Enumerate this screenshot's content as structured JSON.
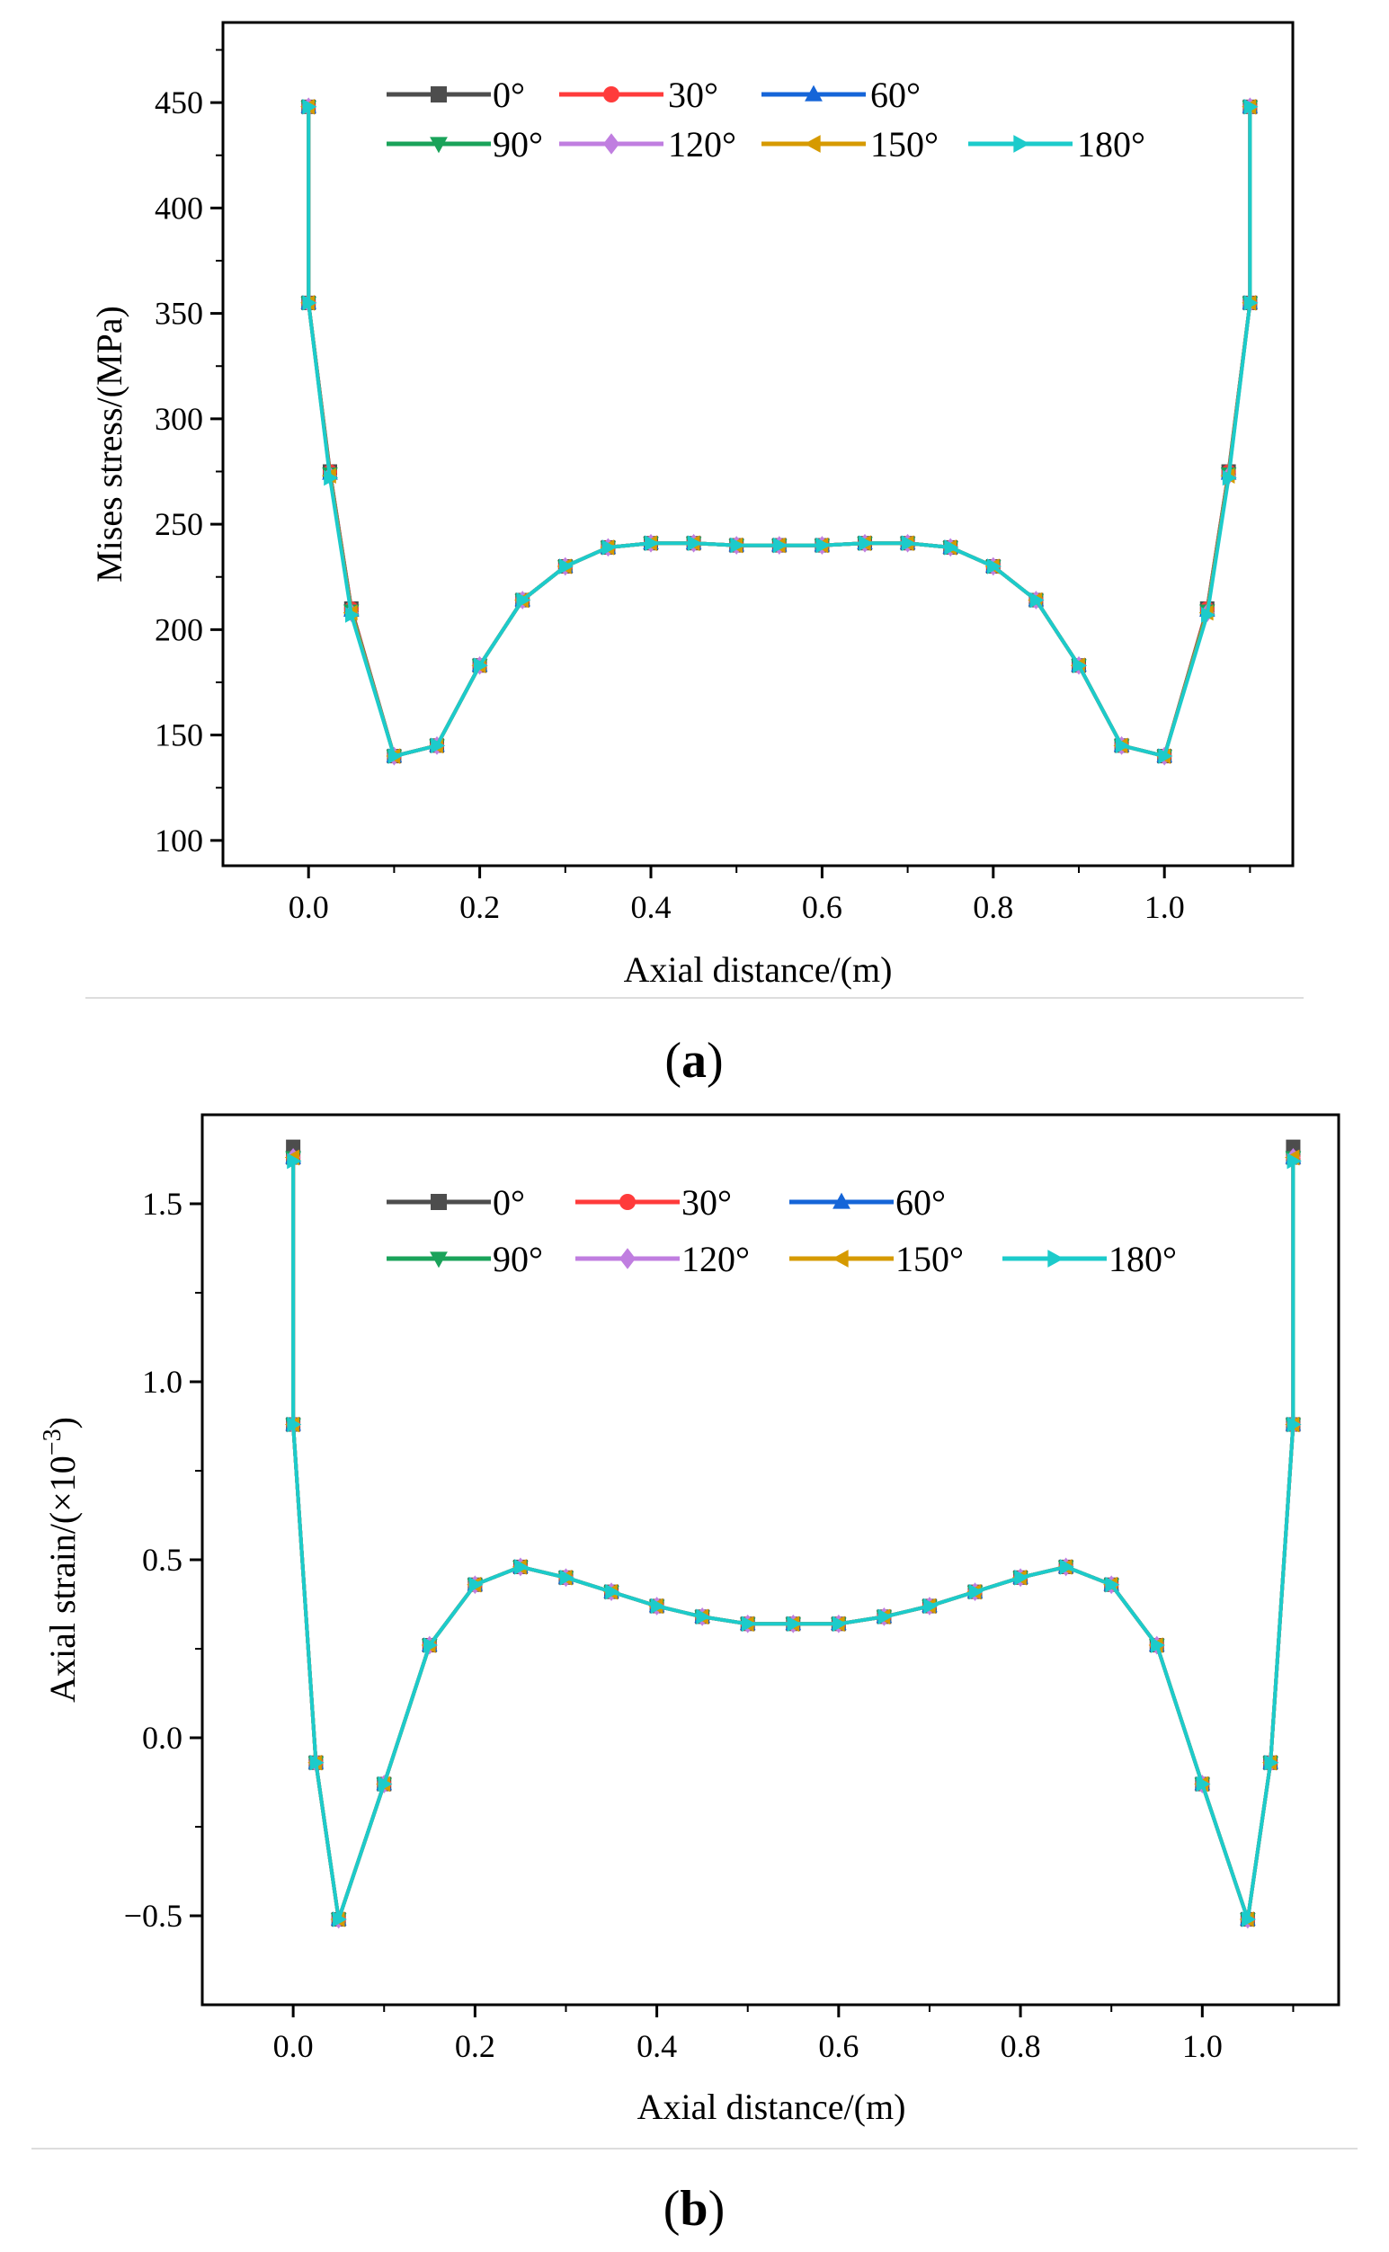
{
  "chart_data": [
    {
      "type": "line",
      "panel_label": "a",
      "xlabel": "Axial distance/(m)",
      "ylabel": "Mises stress/(MPa)",
      "xlim": [
        -0.1,
        1.15
      ],
      "ylim": [
        88,
        488
      ],
      "xticks": [
        0.0,
        0.2,
        0.4,
        0.6,
        0.8,
        1.0
      ],
      "yticks": [
        100,
        150,
        200,
        250,
        300,
        350,
        400,
        450
      ],
      "xtick_labels": [
        "0.0",
        "0.2",
        "0.4",
        "0.6",
        "0.8",
        "1.0"
      ],
      "ytick_labels": [
        "100",
        "150",
        "200",
        "250",
        "300",
        "350",
        "400",
        "450"
      ],
      "x": [
        0.0,
        0.0,
        0.025,
        0.05,
        0.1,
        0.15,
        0.2,
        0.25,
        0.3,
        0.35,
        0.4,
        0.45,
        0.5,
        0.55,
        0.6,
        0.65,
        0.7,
        0.75,
        0.8,
        0.85,
        0.9,
        0.95,
        1.0,
        1.05,
        1.075,
        1.1,
        1.1
      ],
      "series": [
        {
          "name": "0°",
          "values": [
            448,
            355,
            275,
            210,
            140,
            145,
            183,
            214,
            230,
            239,
            241,
            241,
            240,
            240,
            240,
            241,
            241,
            239,
            230,
            214,
            183,
            145,
            140,
            210,
            275,
            355,
            448
          ]
        },
        {
          "name": "30°",
          "values": [
            448,
            355,
            275,
            210,
            140,
            145,
            183,
            214,
            230,
            239,
            241,
            241,
            240,
            240,
            240,
            241,
            241,
            239,
            230,
            214,
            183,
            145,
            140,
            210,
            275,
            355,
            448
          ]
        },
        {
          "name": "60°",
          "values": [
            448,
            355,
            274,
            209,
            140,
            145,
            183,
            214,
            230,
            239,
            241,
            241,
            240,
            240,
            240,
            241,
            241,
            239,
            230,
            214,
            183,
            145,
            140,
            209,
            274,
            355,
            448
          ]
        },
        {
          "name": "90°",
          "values": [
            448,
            355,
            274,
            209,
            140,
            145,
            183,
            214,
            230,
            239,
            241,
            241,
            240,
            240,
            240,
            241,
            241,
            239,
            230,
            214,
            183,
            145,
            140,
            209,
            274,
            355,
            448
          ]
        },
        {
          "name": "120°",
          "values": [
            448,
            355,
            273,
            208,
            140,
            145,
            183,
            214,
            230,
            239,
            241,
            241,
            240,
            240,
            240,
            241,
            241,
            239,
            230,
            214,
            183,
            145,
            140,
            208,
            273,
            355,
            448
          ]
        },
        {
          "name": "150°",
          "values": [
            448,
            355,
            273,
            208,
            140,
            145,
            183,
            214,
            230,
            239,
            241,
            241,
            240,
            240,
            240,
            241,
            241,
            239,
            230,
            214,
            183,
            145,
            140,
            208,
            273,
            355,
            448
          ]
        },
        {
          "name": "180°",
          "values": [
            448,
            355,
            272,
            207,
            140,
            145,
            183,
            214,
            230,
            239,
            241,
            241,
            240,
            240,
            240,
            241,
            241,
            239,
            230,
            214,
            183,
            145,
            140,
            207,
            272,
            355,
            448
          ]
        }
      ]
    },
    {
      "type": "line",
      "panel_label": "b",
      "xlabel": "Axial distance/(m)",
      "ylabel_text": "Axial strain/(×10",
      "ylabel_sup": "−3",
      "ylabel_close": ")",
      "xlim": [
        -0.1,
        1.15
      ],
      "ylim": [
        -0.75,
        1.75
      ],
      "xticks": [
        0.0,
        0.2,
        0.4,
        0.6,
        0.8,
        1.0
      ],
      "yticks": [
        -0.5,
        0.0,
        0.5,
        1.0,
        1.5
      ],
      "xtick_labels": [
        "0.0",
        "0.2",
        "0.4",
        "0.6",
        "0.8",
        "1.0"
      ],
      "ytick_labels": [
        "−0.5",
        "0.0",
        "0.5",
        "1.0",
        "1.5"
      ],
      "x": [
        0.0,
        0.0,
        0.0,
        0.025,
        0.05,
        0.1,
        0.15,
        0.2,
        0.25,
        0.3,
        0.35,
        0.4,
        0.45,
        0.5,
        0.55,
        0.6,
        0.65,
        0.7,
        0.75,
        0.8,
        0.85,
        0.9,
        0.95,
        1.0,
        1.05,
        1.075,
        1.1,
        1.1,
        1.1
      ],
      "series": [
        {
          "name": "0°",
          "values": [
            1.66,
            1.63,
            0.88,
            -0.07,
            -0.51,
            -0.13,
            0.26,
            0.43,
            0.48,
            0.45,
            0.41,
            0.37,
            0.34,
            0.32,
            0.32,
            0.32,
            0.34,
            0.37,
            0.41,
            0.45,
            0.48,
            0.43,
            0.26,
            -0.13,
            -0.51,
            -0.07,
            0.88,
            1.63,
            1.66
          ]
        },
        {
          "name": "30°",
          "values": [
            1.63,
            1.63,
            0.88,
            -0.07,
            -0.51,
            -0.13,
            0.26,
            0.43,
            0.48,
            0.45,
            0.41,
            0.37,
            0.34,
            0.32,
            0.32,
            0.32,
            0.34,
            0.37,
            0.41,
            0.45,
            0.48,
            0.43,
            0.26,
            -0.13,
            -0.51,
            -0.07,
            0.88,
            1.63,
            1.63
          ]
        },
        {
          "name": "60°",
          "values": [
            1.63,
            1.63,
            0.88,
            -0.07,
            -0.51,
            -0.13,
            0.26,
            0.43,
            0.48,
            0.45,
            0.41,
            0.37,
            0.34,
            0.32,
            0.32,
            0.32,
            0.34,
            0.37,
            0.41,
            0.45,
            0.48,
            0.43,
            0.26,
            -0.13,
            -0.51,
            -0.07,
            0.88,
            1.63,
            1.63
          ]
        },
        {
          "name": "90°",
          "values": [
            1.63,
            1.63,
            0.88,
            -0.07,
            -0.51,
            -0.13,
            0.26,
            0.43,
            0.48,
            0.45,
            0.41,
            0.37,
            0.34,
            0.32,
            0.32,
            0.32,
            0.34,
            0.37,
            0.41,
            0.45,
            0.48,
            0.43,
            0.26,
            -0.13,
            -0.51,
            -0.07,
            0.88,
            1.63,
            1.63
          ]
        },
        {
          "name": "120°",
          "values": [
            1.63,
            1.63,
            0.88,
            -0.07,
            -0.51,
            -0.13,
            0.26,
            0.43,
            0.48,
            0.45,
            0.41,
            0.37,
            0.34,
            0.32,
            0.32,
            0.32,
            0.34,
            0.37,
            0.41,
            0.45,
            0.48,
            0.43,
            0.26,
            -0.13,
            -0.51,
            -0.07,
            0.88,
            1.63,
            1.63
          ]
        },
        {
          "name": "150°",
          "values": [
            1.63,
            1.63,
            0.88,
            -0.07,
            -0.51,
            -0.13,
            0.26,
            0.43,
            0.48,
            0.45,
            0.41,
            0.37,
            0.34,
            0.32,
            0.32,
            0.32,
            0.34,
            0.37,
            0.41,
            0.45,
            0.48,
            0.43,
            0.26,
            -0.13,
            -0.51,
            -0.07,
            0.88,
            1.63,
            1.63
          ]
        },
        {
          "name": "180°",
          "values": [
            1.62,
            1.62,
            0.88,
            -0.07,
            -0.51,
            -0.13,
            0.26,
            0.43,
            0.48,
            0.45,
            0.41,
            0.37,
            0.34,
            0.32,
            0.32,
            0.32,
            0.34,
            0.37,
            0.41,
            0.45,
            0.48,
            0.43,
            0.26,
            -0.13,
            -0.51,
            -0.07,
            0.88,
            1.62,
            1.62
          ]
        }
      ]
    }
  ],
  "legend_series": [
    {
      "name": "0°",
      "color": "#4d4d4d",
      "marker": "square"
    },
    {
      "name": "30°",
      "color": "#ff3b3b",
      "marker": "circle"
    },
    {
      "name": "60°",
      "color": "#1565d8",
      "marker": "triangle-up"
    },
    {
      "name": "90°",
      "color": "#1aa35a",
      "marker": "triangle-down"
    },
    {
      "name": "120°",
      "color": "#c07ee0",
      "marker": "diamond"
    },
    {
      "name": "150°",
      "color": "#d69a00",
      "marker": "triangle-left"
    },
    {
      "name": "180°",
      "color": "#1ccbcb",
      "marker": "triangle-right"
    }
  ]
}
